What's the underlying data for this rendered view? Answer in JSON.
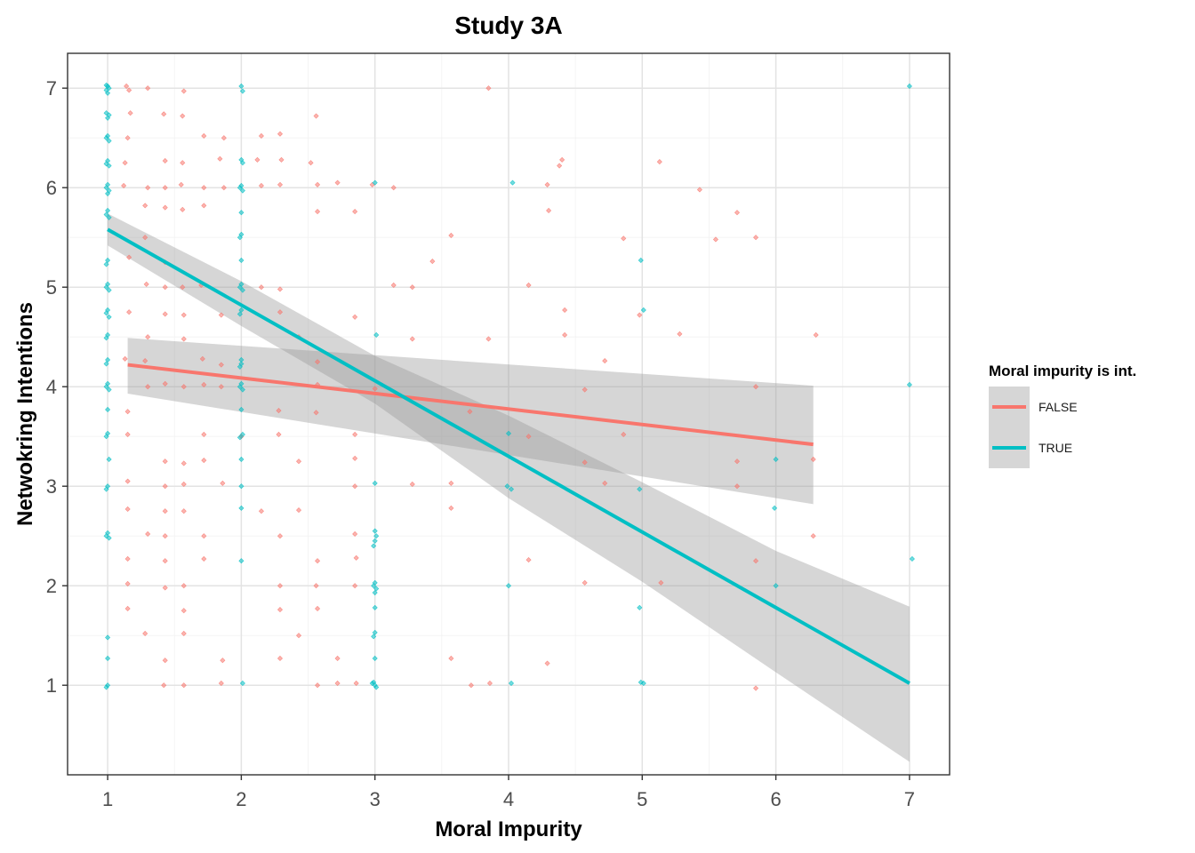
{
  "chart_data": {
    "type": "scatter",
    "title": "Study 3A",
    "xlabel": "Moral Impurity",
    "ylabel": "Netwokring Intentions",
    "xlim": [
      0.7,
      7.3
    ],
    "ylim": [
      0.1,
      7.35
    ],
    "xticks": [
      1,
      2,
      3,
      4,
      5,
      6,
      7
    ],
    "yticks": [
      1,
      2,
      3,
      4,
      5,
      6,
      7
    ],
    "grid": true,
    "legend": {
      "title": "Moral impurity is int.",
      "position": "right"
    },
    "series": [
      {
        "name": "FALSE",
        "color": "#F8766D",
        "fit": {
          "x": [
            1.15,
            6.28
          ],
          "y": [
            4.22,
            3.42
          ]
        },
        "ci": {
          "x": [
            1.15,
            6.28
          ],
          "lower": [
            3.93,
            2.82
          ],
          "upper": [
            4.49,
            4.01
          ]
        },
        "points": [
          [
            1.14,
            7.02
          ],
          [
            1.16,
            6.98
          ],
          [
            1.3,
            7.0
          ],
          [
            1.57,
            6.97
          ],
          [
            3.85,
            7.0
          ],
          [
            1.17,
            6.75
          ],
          [
            1.42,
            6.74
          ],
          [
            1.56,
            6.72
          ],
          [
            1.15,
            6.5
          ],
          [
            1.72,
            6.52
          ],
          [
            1.87,
            6.5
          ],
          [
            2.15,
            6.52
          ],
          [
            2.29,
            6.54
          ],
          [
            2.56,
            6.72
          ],
          [
            1.56,
            6.25
          ],
          [
            1.43,
            6.27
          ],
          [
            1.13,
            6.25
          ],
          [
            1.84,
            6.29
          ],
          [
            2.12,
            6.28
          ],
          [
            2.3,
            6.28
          ],
          [
            2.52,
            6.25
          ],
          [
            4.4,
            6.28
          ],
          [
            4.38,
            6.22
          ],
          [
            5.13,
            6.26
          ],
          [
            1.12,
            6.02
          ],
          [
            1.3,
            6.0
          ],
          [
            1.43,
            6.0
          ],
          [
            1.55,
            6.03
          ],
          [
            1.72,
            6.0
          ],
          [
            1.87,
            6.0
          ],
          [
            2.15,
            6.02
          ],
          [
            2.29,
            6.03
          ],
          [
            2.57,
            6.03
          ],
          [
            2.72,
            6.05
          ],
          [
            2.98,
            6.03
          ],
          [
            3.14,
            6.0
          ],
          [
            4.29,
            6.03
          ],
          [
            5.43,
            5.98
          ],
          [
            1.28,
            5.82
          ],
          [
            1.43,
            5.8
          ],
          [
            1.56,
            5.78
          ],
          [
            1.72,
            5.82
          ],
          [
            2.57,
            5.76
          ],
          [
            2.85,
            5.76
          ],
          [
            4.3,
            5.77
          ],
          [
            5.71,
            5.75
          ],
          [
            1.28,
            5.5
          ],
          [
            3.57,
            5.52
          ],
          [
            4.86,
            5.49
          ],
          [
            5.55,
            5.48
          ],
          [
            5.85,
            5.5
          ],
          [
            1.16,
            5.3
          ],
          [
            1.43,
            5.25
          ],
          [
            3.43,
            5.26
          ],
          [
            1.29,
            5.03
          ],
          [
            1.43,
            5.0
          ],
          [
            1.56,
            5.0
          ],
          [
            1.7,
            5.02
          ],
          [
            2.15,
            5.0
          ],
          [
            2.29,
            4.98
          ],
          [
            3.14,
            5.02
          ],
          [
            3.28,
            5.0
          ],
          [
            4.15,
            5.02
          ],
          [
            1.16,
            4.75
          ],
          [
            1.43,
            4.73
          ],
          [
            1.57,
            4.72
          ],
          [
            1.85,
            4.72
          ],
          [
            2.29,
            4.75
          ],
          [
            2.85,
            4.7
          ],
          [
            4.42,
            4.77
          ],
          [
            4.98,
            4.72
          ],
          [
            6.3,
            4.52
          ],
          [
            1.3,
            4.5
          ],
          [
            1.57,
            4.48
          ],
          [
            2.43,
            4.5
          ],
          [
            3.28,
            4.48
          ],
          [
            3.85,
            4.48
          ],
          [
            4.42,
            4.52
          ],
          [
            5.28,
            4.53
          ],
          [
            1.13,
            4.28
          ],
          [
            1.28,
            4.26
          ],
          [
            1.71,
            4.28
          ],
          [
            1.85,
            4.22
          ],
          [
            2.57,
            4.25
          ],
          [
            4.72,
            4.26
          ],
          [
            1.3,
            4.0
          ],
          [
            1.43,
            4.03
          ],
          [
            1.57,
            4.0
          ],
          [
            1.72,
            4.02
          ],
          [
            1.85,
            4.0
          ],
          [
            2.57,
            4.02
          ],
          [
            3.0,
            3.98
          ],
          [
            4.57,
            3.97
          ],
          [
            5.85,
            4.0
          ],
          [
            1.15,
            3.75
          ],
          [
            2.28,
            3.76
          ],
          [
            2.56,
            3.74
          ],
          [
            3.71,
            3.75
          ],
          [
            1.72,
            3.52
          ],
          [
            2.0,
            3.5
          ],
          [
            2.28,
            3.52
          ],
          [
            2.85,
            3.52
          ],
          [
            4.15,
            3.5
          ],
          [
            1.15,
            3.52
          ],
          [
            4.86,
            3.52
          ],
          [
            1.43,
            3.25
          ],
          [
            1.57,
            3.23
          ],
          [
            1.72,
            3.26
          ],
          [
            2.43,
            3.25
          ],
          [
            2.85,
            3.28
          ],
          [
            4.57,
            3.24
          ],
          [
            5.71,
            3.25
          ],
          [
            6.28,
            3.27
          ],
          [
            1.15,
            3.05
          ],
          [
            1.43,
            3.0
          ],
          [
            1.57,
            3.02
          ],
          [
            1.86,
            3.03
          ],
          [
            2.85,
            3.0
          ],
          [
            3.28,
            3.02
          ],
          [
            3.57,
            3.03
          ],
          [
            4.72,
            3.03
          ],
          [
            5.71,
            3.0
          ],
          [
            1.15,
            2.77
          ],
          [
            1.43,
            2.75
          ],
          [
            1.57,
            2.75
          ],
          [
            2.15,
            2.75
          ],
          [
            2.43,
            2.76
          ],
          [
            3.57,
            2.78
          ],
          [
            1.3,
            2.52
          ],
          [
            1.43,
            2.5
          ],
          [
            1.72,
            2.5
          ],
          [
            2.29,
            2.5
          ],
          [
            2.85,
            2.52
          ],
          [
            6.28,
            2.5
          ],
          [
            1.15,
            2.27
          ],
          [
            1.43,
            2.25
          ],
          [
            1.72,
            2.27
          ],
          [
            2.57,
            2.25
          ],
          [
            2.86,
            2.28
          ],
          [
            4.15,
            2.26
          ],
          [
            5.85,
            2.25
          ],
          [
            1.15,
            2.02
          ],
          [
            1.43,
            1.98
          ],
          [
            1.57,
            2.0
          ],
          [
            2.29,
            2.0
          ],
          [
            2.56,
            2.0
          ],
          [
            2.85,
            2.0
          ],
          [
            4.57,
            2.03
          ],
          [
            5.14,
            2.03
          ],
          [
            1.15,
            1.77
          ],
          [
            1.57,
            1.75
          ],
          [
            2.29,
            1.76
          ],
          [
            2.57,
            1.77
          ],
          [
            1.28,
            1.52
          ],
          [
            1.57,
            1.52
          ],
          [
            2.43,
            1.5
          ],
          [
            1.43,
            1.25
          ],
          [
            1.86,
            1.25
          ],
          [
            2.29,
            1.27
          ],
          [
            2.72,
            1.27
          ],
          [
            3.57,
            1.27
          ],
          [
            4.29,
            1.22
          ],
          [
            1.42,
            1.0
          ],
          [
            1.57,
            1.0
          ],
          [
            1.85,
            1.02
          ],
          [
            2.57,
            1.0
          ],
          [
            2.86,
            1.02
          ],
          [
            3.72,
            1.0
          ],
          [
            3.86,
            1.02
          ],
          [
            5.85,
            0.97
          ],
          [
            2.72,
            1.02
          ]
        ]
      },
      {
        "name": "TRUE",
        "color": "#00BFC4",
        "fit": {
          "x": [
            1.0,
            7.0
          ],
          "y": [
            5.58,
            1.02
          ]
        },
        "ci": {
          "x": [
            1.0,
            2.0,
            3.0,
            4.0,
            5.0,
            6.0,
            7.0
          ],
          "lower": [
            5.42,
            4.61,
            3.83,
            2.88,
            2.04,
            1.13,
            0.23
          ],
          "upper": [
            5.74,
            5.06,
            4.31,
            3.71,
            3.04,
            2.35,
            1.79
          ]
        },
        "points": [
          [
            1.0,
            7.02
          ],
          [
            0.99,
            6.98
          ],
          [
            1.01,
            7.0
          ],
          [
            1.0,
            6.95
          ],
          [
            0.99,
            7.03
          ],
          [
            2.0,
            7.02
          ],
          [
            2.01,
            6.97
          ],
          [
            7.0,
            7.02
          ],
          [
            0.99,
            6.75
          ],
          [
            1.01,
            6.73
          ],
          [
            1.0,
            6.7
          ],
          [
            1.0,
            6.52
          ],
          [
            0.99,
            6.5
          ],
          [
            1.01,
            6.47
          ],
          [
            1.0,
            6.27
          ],
          [
            0.99,
            6.24
          ],
          [
            1.01,
            6.22
          ],
          [
            2.0,
            6.28
          ],
          [
            2.01,
            6.25
          ],
          [
            1.0,
            6.03
          ],
          [
            0.99,
            6.0
          ],
          [
            1.01,
            5.97
          ],
          [
            1.0,
            5.94
          ],
          [
            2.0,
            6.02
          ],
          [
            1.99,
            6.0
          ],
          [
            2.01,
            5.97
          ],
          [
            3.0,
            6.05
          ],
          [
            4.03,
            6.05
          ],
          [
            1.0,
            5.77
          ],
          [
            0.99,
            5.73
          ],
          [
            1.01,
            5.7
          ],
          [
            2.0,
            5.75
          ],
          [
            2.0,
            5.53
          ],
          [
            1.99,
            5.5
          ],
          [
            1.0,
            5.27
          ],
          [
            0.99,
            5.23
          ],
          [
            2.0,
            5.27
          ],
          [
            4.99,
            5.27
          ],
          [
            1.0,
            5.03
          ],
          [
            0.99,
            5.0
          ],
          [
            1.01,
            4.97
          ],
          [
            2.0,
            5.03
          ],
          [
            1.99,
            5.0
          ],
          [
            2.01,
            4.97
          ],
          [
            1.0,
            4.77
          ],
          [
            0.99,
            4.74
          ],
          [
            1.01,
            4.7
          ],
          [
            2.0,
            4.77
          ],
          [
            1.99,
            4.73
          ],
          [
            5.01,
            4.77
          ],
          [
            1.0,
            4.52
          ],
          [
            0.99,
            4.49
          ],
          [
            3.01,
            4.52
          ],
          [
            1.0,
            4.27
          ],
          [
            0.99,
            4.23
          ],
          [
            2.0,
            4.27
          ],
          [
            2.0,
            4.23
          ],
          [
            1.99,
            4.2
          ],
          [
            1.0,
            4.03
          ],
          [
            0.99,
            4.0
          ],
          [
            1.01,
            3.97
          ],
          [
            2.0,
            4.03
          ],
          [
            1.99,
            4.0
          ],
          [
            2.01,
            3.97
          ],
          [
            7.0,
            4.02
          ],
          [
            1.0,
            3.77
          ],
          [
            2.0,
            3.77
          ],
          [
            1.0,
            3.53
          ],
          [
            0.99,
            3.5
          ],
          [
            2.01,
            3.52
          ],
          [
            1.99,
            3.49
          ],
          [
            4.0,
            3.53
          ],
          [
            2.0,
            3.27
          ],
          [
            1.01,
            3.27
          ],
          [
            6.0,
            3.27
          ],
          [
            1.0,
            3.0
          ],
          [
            0.99,
            2.97
          ],
          [
            2.0,
            3.0
          ],
          [
            3.0,
            3.03
          ],
          [
            3.99,
            3.0
          ],
          [
            4.02,
            2.97
          ],
          [
            4.98,
            2.97
          ],
          [
            2.0,
            2.78
          ],
          [
            5.99,
            2.78
          ],
          [
            1.0,
            2.53
          ],
          [
            0.99,
            2.5
          ],
          [
            1.01,
            2.48
          ],
          [
            3.0,
            2.55
          ],
          [
            3.01,
            2.5
          ],
          [
            3.0,
            2.45
          ],
          [
            2.99,
            2.4
          ],
          [
            2.0,
            2.25
          ],
          [
            7.02,
            2.27
          ],
          [
            3.0,
            2.03
          ],
          [
            2.99,
            2.0
          ],
          [
            3.01,
            1.97
          ],
          [
            3.0,
            1.93
          ],
          [
            4.0,
            2.0
          ],
          [
            6.0,
            2.0
          ],
          [
            3.0,
            1.78
          ],
          [
            4.98,
            1.78
          ],
          [
            3.0,
            1.53
          ],
          [
            2.99,
            1.49
          ],
          [
            1.0,
            1.48
          ],
          [
            1.0,
            1.27
          ],
          [
            3.0,
            1.27
          ],
          [
            2.99,
            1.03
          ],
          [
            3.0,
            1.0
          ],
          [
            3.01,
            0.98
          ],
          [
            2.98,
            1.02
          ],
          [
            1.0,
            1.0
          ],
          [
            0.99,
            0.98
          ],
          [
            2.01,
            1.02
          ],
          [
            4.02,
            1.02
          ],
          [
            4.99,
            1.03
          ],
          [
            5.01,
            1.02
          ]
        ]
      }
    ]
  }
}
